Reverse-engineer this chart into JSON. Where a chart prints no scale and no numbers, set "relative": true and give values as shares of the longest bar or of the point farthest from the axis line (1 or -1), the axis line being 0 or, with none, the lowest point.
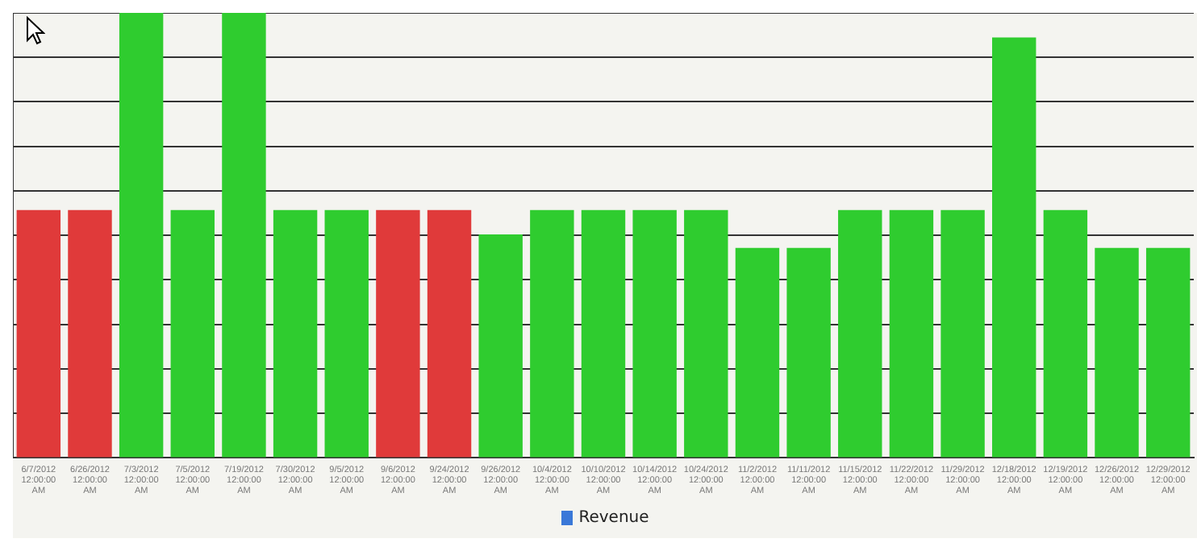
{
  "chart_data": {
    "type": "bar",
    "relative": true,
    "grid": "y",
    "legend": "bottom",
    "categories": [
      "6/7/2012 12:00:00 AM",
      "6/26/2012 12:00:00 AM",
      "7/3/2012 12:00:00 AM",
      "7/5/2012 12:00:00 AM",
      "7/19/2012 12:00:00 AM",
      "7/30/2012 12:00:00 AM",
      "9/5/2012 12:00:00 AM",
      "9/6/2012 12:00:00 AM",
      "9/24/2012 12:00:00 AM",
      "9/26/2012 12:00:00 AM",
      "10/4/2012 12:00:00 AM",
      "10/10/2012 12:00:00 AM",
      "10/14/2012 12:00:00 AM",
      "10/24/2012 12:00:00 AM",
      "11/2/2012 12:00:00 AM",
      "11/11/2012 12:00:00 AM",
      "11/15/2012 12:00:00 AM",
      "11/22/2012 12:00:00 AM",
      "11/29/2012 12:00:00 AM",
      "12/18/2012 12:00:00 AM",
      "12/19/2012 12:00:00 AM",
      "12/26/2012 12:00:00 AM",
      "12/29/2012 12:00:00 AM"
    ],
    "series": [
      {
        "name": "Revenue",
        "color": "#3a78d8",
        "colors": [
          "#e03a3a",
          "#e03a3a",
          "#2fcc2f",
          "#2fcc2f",
          "#2fcc2f",
          "#2fcc2f",
          "#2fcc2f",
          "#e03a3a",
          "#e03a3a",
          "#2fcc2f",
          "#2fcc2f",
          "#2fcc2f",
          "#2fcc2f",
          "#2fcc2f",
          "#2fcc2f",
          "#2fcc2f",
          "#2fcc2f",
          "#2fcc2f",
          "#2fcc2f",
          "#2fcc2f",
          "#2fcc2f",
          "#2fcc2f",
          "#2fcc2f"
        ],
        "values": [
          0.557,
          0.557,
          1,
          0.557,
          1,
          0.557,
          0.557,
          0.557,
          0.557,
          0.502,
          0.557,
          0.557,
          0.557,
          0.557,
          0.472,
          0.472,
          0.557,
          0.557,
          0.557,
          0.945,
          0.557,
          0.472,
          0.472
        ]
      }
    ]
  }
}
